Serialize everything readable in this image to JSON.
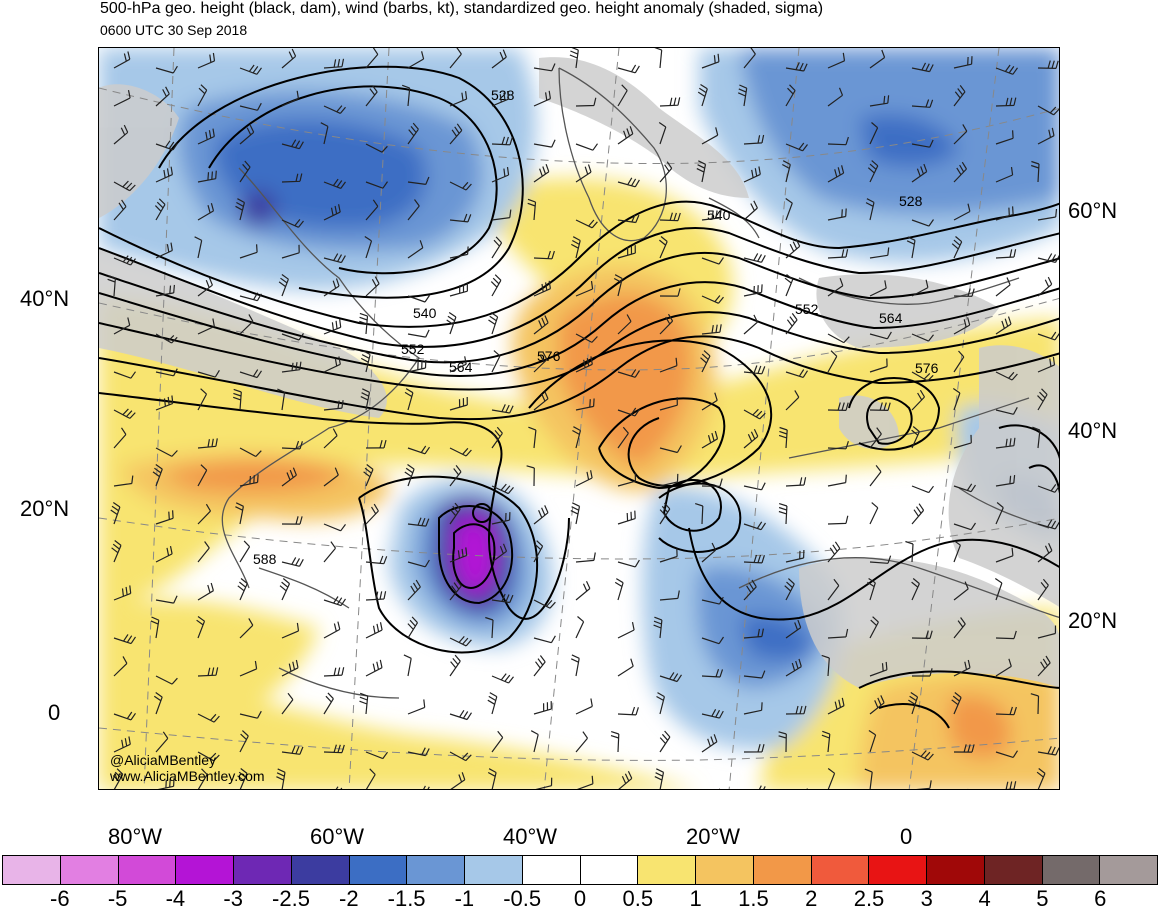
{
  "title": "500-hPa geo. height (black, dam), wind (barbs, kt), standardized geo. height anomaly (shaded, sigma)",
  "valid_time": "0600 UTC 30 Sep 2018",
  "credits": {
    "handle": "@AliciaMBentley",
    "website": "www.AliciaMBentley.com"
  },
  "left_lat_labels": [
    "40°N",
    "20°N",
    "0"
  ],
  "right_lat_labels": [
    "60°N",
    "40°N",
    "20°N"
  ],
  "lon_labels": [
    "80°W",
    "60°W",
    "40°W",
    "20°W",
    "0"
  ],
  "contour_labels": [
    "528",
    "540",
    "552",
    "564",
    "576",
    "528",
    "540",
    "552",
    "564",
    "576",
    "588"
  ],
  "colorbar": {
    "ticks": [
      "-6",
      "-5",
      "-4",
      "-3",
      "-2.5",
      "-2",
      "-1.5",
      "-1",
      "-0.5",
      "0",
      "0.5",
      "1",
      "1.5",
      "2",
      "2.5",
      "3",
      "4",
      "5",
      "6"
    ],
    "colors": [
      "#e8b4e8",
      "#e27fe2",
      "#d24ad8",
      "#b414d6",
      "#6e28b4",
      "#3c3ca0",
      "#3c6ec4",
      "#6a96d4",
      "#a6c8e8",
      "#ffffff",
      "#ffffff",
      "#f8e470",
      "#f4c460",
      "#f29848",
      "#f05a3c",
      "#e81414",
      "#a00808",
      "#6e2424",
      "#746a6a",
      "#a49a9a"
    ]
  },
  "map_colors": {
    "land_gray": "#cccccc",
    "contour": "#000000",
    "coast": "#555555"
  }
}
